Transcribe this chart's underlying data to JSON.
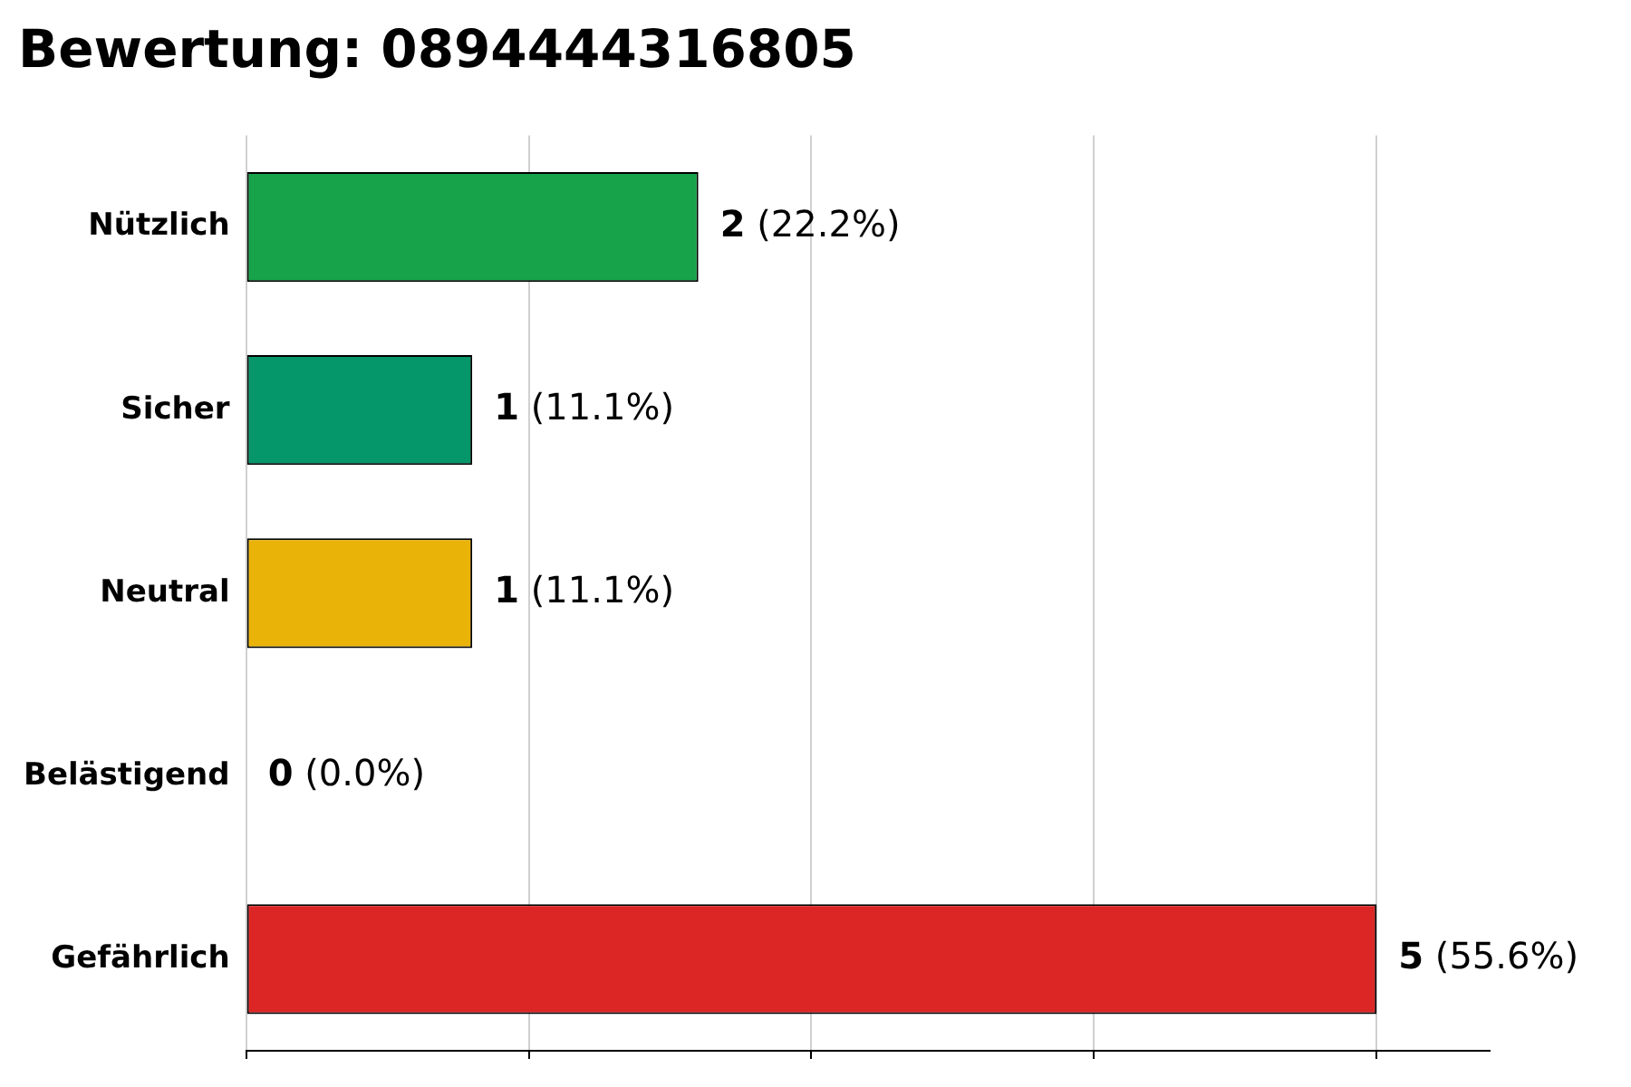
{
  "chart_data": {
    "type": "bar",
    "orientation": "horizontal",
    "title": "Bewertung: 0894444316805",
    "categories": [
      "Nützlich",
      "Sicher",
      "Neutral",
      "Belästigend",
      "Gefährlich"
    ],
    "values": [
      2,
      1,
      1,
      0,
      5
    ],
    "colors": [
      "#16a34a",
      "#059669",
      "#eab308",
      "#ea580c",
      "#dc2626"
    ],
    "value_labels": [
      "2 (22.2%)",
      "1 (11.1%)",
      "1 (11.1%)",
      "0 (0.0%)",
      "5 (55.6%)"
    ],
    "xlim": [
      0,
      5.5
    ],
    "xticks": [
      {
        "value": 0,
        "label": null
      },
      {
        "value": 1.25,
        "label": null
      },
      {
        "value": 2.5,
        "label": null
      },
      {
        "value": 3.75,
        "label": null
      },
      {
        "value": 5,
        "label": null
      }
    ],
    "grid": "x",
    "tick_labels": "y",
    "legend": false
  }
}
